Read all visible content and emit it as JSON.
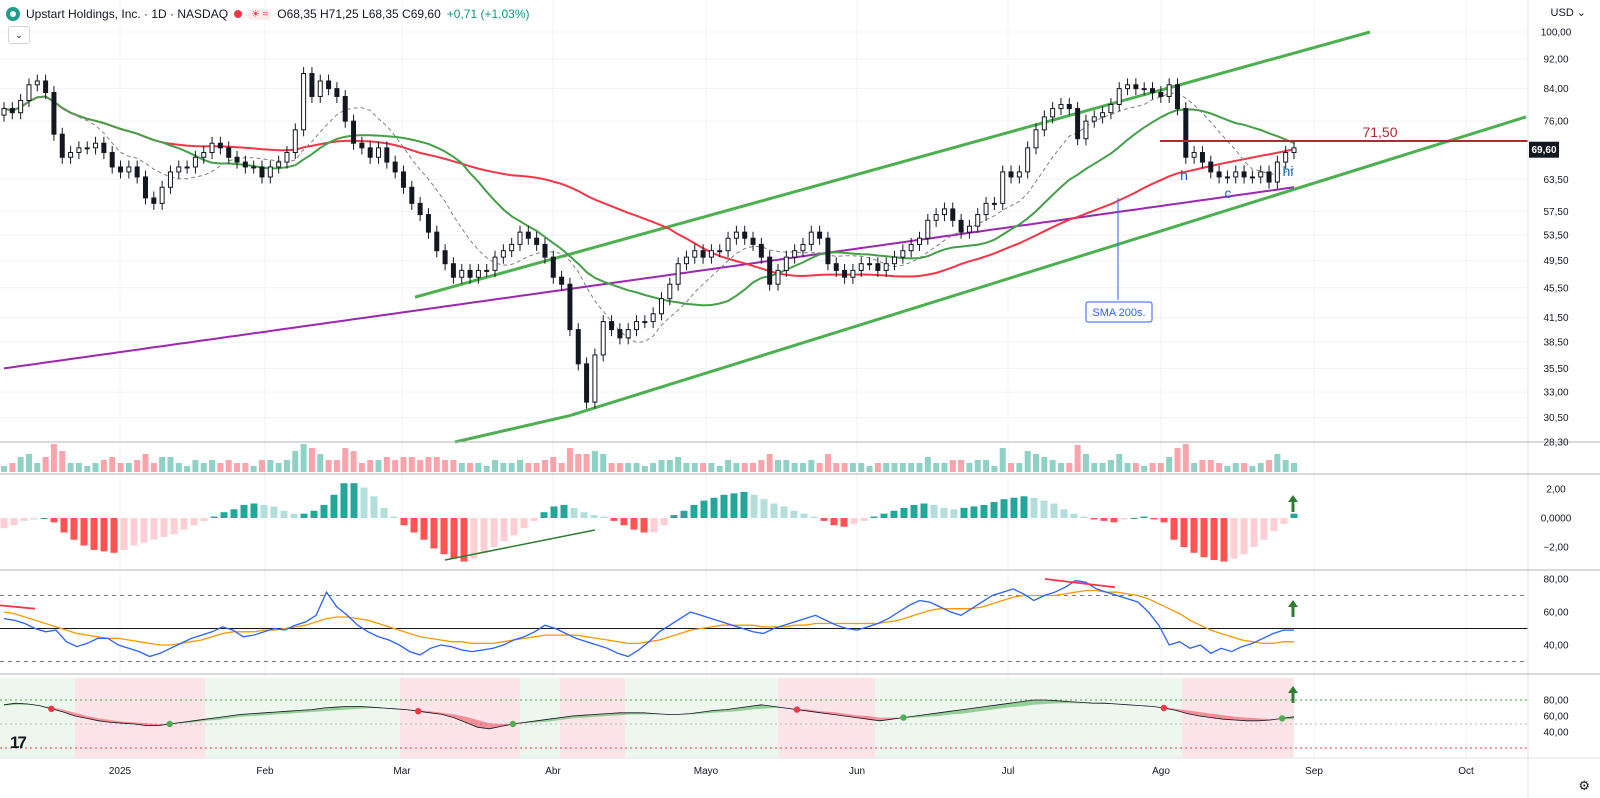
{
  "header": {
    "title": "Upstart Holdings, Inc. · 1D · NASDAQ",
    "ohlc": "O68,35  H71,25  L68,35  C69,60",
    "change": "+0,71 (+1,03%)"
  },
  "currency": "USD",
  "colors": {
    "up": "#089981",
    "down": "#f23645",
    "channel": "#4caf50",
    "sma200": "#9c27b0",
    "sma50": "#f23645",
    "sma20": "#43a047",
    "hline": "#b22833"
  },
  "chart_data": [
    {
      "type": "candlestick",
      "title": "Upstart Holdings, Inc. · 1D · NASDAQ",
      "y_axis": {
        "scale": "log",
        "ticks": [
          "100,00",
          "92,00",
          "84,00",
          "76,00",
          "69,60",
          "63,50",
          "57,50",
          "53,50",
          "49,50",
          "45,50",
          "41,50",
          "38,50",
          "35,50",
          "33,00",
          "30,50",
          "28,30"
        ]
      },
      "x_axis": {
        "ticks": [
          "2025",
          "Feb",
          "Mar",
          "Abr",
          "Mayo",
          "Jun",
          "Jul",
          "Ago",
          "Sep",
          "Oct"
        ]
      },
      "last_price": "69,60",
      "horizontal_line": {
        "value": 71.5,
        "label": "71,50"
      },
      "annotations": [
        {
          "text": "h"
        },
        {
          "text": "c"
        },
        {
          "text": "hi"
        },
        {
          "text": "SMA 200s."
        }
      ],
      "series": [
        {
          "kind": "close",
          "values": [
            79,
            78,
            81,
            85,
            86,
            83,
            73,
            68,
            69,
            70,
            70,
            71,
            69,
            66,
            65,
            66,
            64,
            60,
            59,
            62,
            65,
            66,
            66,
            68,
            69,
            71,
            70,
            68,
            67,
            66,
            66,
            64,
            66,
            67,
            69,
            74,
            88,
            82,
            86,
            84,
            82,
            76,
            71,
            70,
            68,
            70,
            67,
            65,
            62,
            59,
            57,
            54,
            51,
            49,
            47,
            48,
            47,
            48,
            48,
            50,
            51,
            52,
            54,
            53,
            52,
            50,
            47,
            46,
            40,
            36,
            32,
            37,
            41,
            40,
            39,
            40,
            41,
            41,
            42,
            44,
            46,
            49,
            50,
            51,
            50,
            51,
            51,
            53,
            54,
            53,
            52,
            50,
            46,
            48,
            50,
            51,
            52,
            54,
            53,
            49,
            48,
            47,
            48,
            49,
            49,
            48,
            49,
            50,
            51,
            52,
            53,
            56,
            57,
            58,
            56,
            54,
            55,
            57,
            59,
            59,
            65,
            64,
            65,
            70,
            74,
            77,
            79,
            80,
            79,
            72,
            76,
            77,
            78,
            80,
            84,
            85,
            84,
            84,
            83,
            82,
            85,
            79,
            68,
            69,
            67,
            65,
            64,
            64,
            65,
            64,
            64,
            65,
            63,
            67,
            69,
            70
          ]
        },
        {
          "kind": "sma20"
        },
        {
          "kind": "sma50"
        },
        {
          "kind": "sma200"
        }
      ]
    },
    {
      "type": "bar",
      "title": "Volume",
      "y_axis": {
        "ticks": []
      }
    },
    {
      "type": "bar",
      "title": "Histogram oscillator",
      "y_axis": {
        "ticks": [
          "2,00",
          "0,0000",
          "−2,00"
        ]
      },
      "values": [
        -0.7,
        -0.5,
        -0.2,
        -0.1,
        0,
        -0.3,
        -1.0,
        -1.5,
        -1.9,
        -2.2,
        -2.3,
        -2.4,
        -2.2,
        -1.9,
        -1.7,
        -1.5,
        -1.3,
        -1.1,
        -0.8,
        -0.5,
        -0.2,
        0.1,
        0.4,
        0.6,
        0.9,
        1.0,
        0.9,
        0.8,
        0.5,
        0.3,
        0.3,
        0.5,
        0.9,
        1.6,
        2.4,
        2.4,
        2.1,
        1.5,
        0.7,
        0.1,
        -0.5,
        -1.0,
        -1.5,
        -2.1,
        -2.5,
        -2.8,
        -3.0,
        -2.8,
        -2.4,
        -2.0,
        -1.6,
        -1.2,
        -0.7,
        -0.2,
        0.4,
        0.8,
        0.9,
        0.7,
        0.4,
        0.2,
        0.1,
        -0.2,
        -0.5,
        -0.8,
        -1.0,
        -1.0,
        -0.5,
        0.2,
        0.5,
        0.9,
        1.2,
        1.4,
        1.6,
        1.7,
        1.8,
        1.6,
        1.3,
        1.0,
        0.8,
        0.5,
        0.3,
        0.1,
        -0.2,
        -0.5,
        -0.6,
        -0.4,
        -0.2,
        0.1,
        0.3,
        0.5,
        0.7,
        0.9,
        1.0,
        0.9,
        0.7,
        0.6,
        0.7,
        0.8,
        0.9,
        1.1,
        1.3,
        1.4,
        1.5,
        1.4,
        1.2,
        1.0,
        0.6,
        0.3,
        0.1,
        -0.1,
        -0.2,
        -0.3,
        -0.1,
        0,
        0.1,
        -0.1,
        -0.3,
        -1.5,
        -2.0,
        -2.4,
        -2.7,
        -2.9,
        -3.0,
        -2.8,
        -2.5,
        -2.0,
        -1.5,
        -0.9,
        -0.4,
        0.3
      ]
    },
    {
      "type": "line",
      "title": "RSI",
      "y_axis": {
        "ticks": [
          "80,00",
          "60,00",
          "40,00"
        ]
      },
      "series": [
        {
          "kind": "rsi",
          "values": [
            56,
            55,
            53,
            50,
            48,
            49,
            42,
            39,
            41,
            44,
            44,
            40,
            38,
            36,
            33,
            35,
            38,
            41,
            44,
            46,
            48,
            51,
            49,
            45,
            46,
            48,
            50,
            49,
            52,
            54,
            58,
            72,
            63,
            58,
            52,
            48,
            45,
            43,
            40,
            36,
            34,
            38,
            40,
            39,
            37,
            36,
            37,
            38,
            40,
            43,
            45,
            48,
            52,
            50,
            47,
            44,
            42,
            40,
            38,
            35,
            33,
            37,
            42,
            48,
            52,
            56,
            60,
            58,
            56,
            54,
            52,
            50,
            48,
            47,
            50,
            52,
            54,
            56,
            58,
            55,
            52,
            50,
            49,
            51,
            53,
            56,
            60,
            64,
            67,
            66,
            63,
            60,
            58,
            62,
            66,
            70,
            72,
            74,
            71,
            67,
            70,
            72,
            75,
            79,
            78,
            74,
            72,
            70,
            68,
            66,
            60,
            52,
            40,
            42,
            38,
            40,
            35,
            38,
            36,
            39,
            41,
            44,
            47,
            49,
            49
          ]
        },
        {
          "kind": "rsi_ma",
          "values": [
            60,
            59,
            57,
            55,
            53,
            51,
            49,
            47,
            46,
            45,
            44,
            44,
            43,
            42,
            41,
            40,
            40,
            41,
            42,
            43,
            45,
            47,
            48,
            48,
            48,
            49,
            49,
            50,
            51,
            52,
            54,
            56,
            57,
            57,
            56,
            55,
            53,
            51,
            49,
            47,
            45,
            44,
            43,
            42,
            42,
            41,
            41,
            41,
            42,
            43,
            44,
            45,
            46,
            46,
            46,
            46,
            45,
            44,
            43,
            42,
            41,
            41,
            42,
            43,
            45,
            47,
            49,
            50,
            51,
            52,
            52,
            52,
            52,
            51,
            51,
            51,
            52,
            52,
            53,
            53,
            53,
            53,
            53,
            53,
            53,
            54,
            55,
            57,
            59,
            61,
            62,
            62,
            62,
            62,
            63,
            65,
            67,
            69,
            70,
            70,
            70,
            70,
            71,
            72,
            73,
            73,
            72,
            72,
            71,
            70,
            68,
            65,
            62,
            59,
            55,
            52,
            49,
            47,
            45,
            43,
            42,
            41,
            41,
            42,
            42
          ]
        }
      ]
    },
    {
      "type": "area",
      "title": "Oscillator",
      "y_axis": {
        "ticks": [
          "80,00",
          "60,00",
          "40,00"
        ]
      },
      "series": [
        {
          "kind": "fast",
          "values": [
            74,
            76,
            75,
            73,
            69,
            65,
            60,
            57,
            54,
            52,
            51,
            50,
            48,
            48,
            50,
            52,
            54,
            56,
            58,
            60,
            62,
            63,
            64,
            65,
            66,
            67,
            68,
            70,
            71,
            72,
            72,
            71,
            70,
            69,
            68,
            66,
            64,
            62,
            58,
            52,
            46,
            44,
            47,
            50,
            52,
            54,
            56,
            58,
            60,
            61,
            62,
            63,
            64,
            64,
            64,
            63,
            62,
            62,
            63,
            65,
            67,
            68,
            70,
            72,
            74,
            72,
            70,
            68,
            66,
            64,
            62,
            60,
            58,
            56,
            54,
            56,
            58,
            60,
            62,
            64,
            66,
            68,
            70,
            72,
            74,
            76,
            78,
            80,
            80,
            79,
            78,
            77,
            76,
            76,
            75,
            74,
            73,
            72,
            70,
            67,
            63,
            60,
            58,
            56,
            55,
            54,
            54,
            55,
            57,
            59
          ]
        },
        {
          "kind": "slow",
          "values": [
            73,
            74,
            74,
            73,
            71,
            68,
            64,
            60,
            57,
            55,
            53,
            52,
            51,
            50,
            50,
            51,
            52,
            54,
            55,
            57,
            59,
            60,
            61,
            62,
            63,
            64,
            65,
            66,
            67,
            68,
            69,
            70,
            70,
            69,
            68,
            67,
            66,
            64,
            62,
            59,
            55,
            51,
            50,
            50,
            51,
            52,
            53,
            55,
            57,
            58,
            59,
            60,
            61,
            62,
            62,
            62,
            62,
            62,
            62,
            63,
            64,
            65,
            66,
            68,
            69,
            70,
            70,
            69,
            68,
            66,
            65,
            63,
            61,
            60,
            58,
            58,
            58,
            58,
            59,
            60,
            62,
            63,
            65,
            67,
            69,
            71,
            72,
            74,
            75,
            76,
            76,
            76,
            76,
            75,
            75,
            74,
            73,
            72,
            71,
            69,
            67,
            65,
            63,
            61,
            59,
            58,
            57,
            56,
            56,
            56
          ]
        }
      ]
    }
  ]
}
